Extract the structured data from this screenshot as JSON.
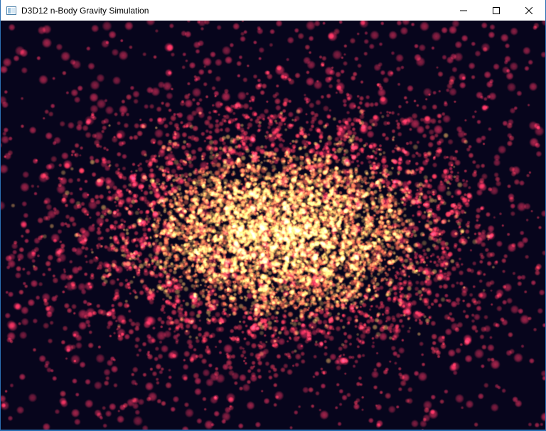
{
  "window": {
    "title": "D3D12 n-Body Gravity Simulation",
    "icon": "app-window-icon"
  },
  "caption_buttons": {
    "minimize_icon": "minimize-icon",
    "maximize_icon": "maximize-icon",
    "close_icon": "close-icon"
  },
  "colors": {
    "background": "#07051c",
    "particle_outer": "#c8283a",
    "particle_mid": "#ff6a3a",
    "particle_core": "#fff7c8",
    "titlebar": "#ffffff",
    "border": "#2b6fb3"
  }
}
